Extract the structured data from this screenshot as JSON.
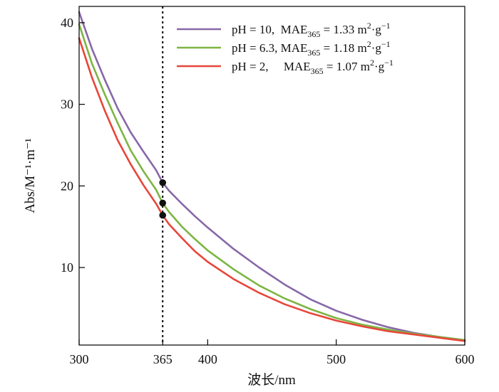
{
  "chart_data": {
    "type": "line",
    "xlabel": "波长/nm",
    "ylabel": "Abs/M⁻¹·m⁻¹",
    "xlim": [
      300,
      600
    ],
    "ylim": [
      0.5,
      42
    ],
    "x_ticks": [
      300,
      365,
      400,
      500,
      600
    ],
    "x_tick_labels": [
      "300",
      "365",
      "400",
      "500",
      "600"
    ],
    "y_ticks": [
      10,
      20,
      30,
      40
    ],
    "y_tick_labels": [
      "10",
      "20",
      "30",
      "40"
    ],
    "grid": false,
    "legend_position": "top-right",
    "reference_line": {
      "x": 365,
      "style": "dotted"
    },
    "x": [
      300,
      310,
      320,
      330,
      340,
      350,
      360,
      365,
      370,
      380,
      390,
      400,
      420,
      440,
      460,
      480,
      500,
      520,
      540,
      560,
      580,
      600
    ],
    "series": [
      {
        "name": "pH = 10",
        "legend_parts": {
          "prefix": "pH = 10,  MAE",
          "sub": "365",
          "mid": " = 1.33 m",
          "sup1": "2",
          "mid2": "·g",
          "sup2": "−1"
        },
        "color": "#8868a8",
        "values": [
          41.3,
          36.8,
          33.0,
          29.5,
          26.6,
          24.2,
          21.9,
          20.4,
          19.4,
          17.8,
          16.3,
          14.9,
          12.3,
          10.0,
          7.9,
          6.1,
          4.7,
          3.6,
          2.7,
          2.0,
          1.5,
          1.1
        ]
      },
      {
        "name": "pH = 6.3",
        "legend_parts": {
          "prefix": "pH = 6.3, MAE",
          "sub": "365",
          "mid": " = 1.18 m",
          "sup1": "2",
          "mid2": "·g",
          "sup2": "−1"
        },
        "color": "#7db543",
        "values": [
          39.8,
          35.0,
          31.2,
          27.7,
          24.4,
          21.8,
          19.5,
          17.9,
          16.8,
          15.0,
          13.5,
          12.1,
          9.8,
          7.8,
          6.2,
          4.9,
          3.8,
          3.0,
          2.4,
          1.9,
          1.5,
          1.1
        ]
      },
      {
        "name": "pH = 2",
        "legend_parts": {
          "prefix": "pH = 2,     MAE",
          "sub": "365",
          "mid": " = 1.07 m",
          "sup1": "2",
          "mid2": "·g",
          "sup2": "−1"
        },
        "color": "#e8463a",
        "values": [
          38.1,
          33.3,
          29.2,
          25.6,
          22.7,
          20.1,
          17.8,
          16.4,
          15.3,
          13.6,
          12.0,
          10.7,
          8.6,
          6.9,
          5.5,
          4.4,
          3.5,
          2.8,
          2.2,
          1.8,
          1.4,
          1.0
        ]
      }
    ],
    "markers": [
      {
        "x": 365,
        "y": 20.4
      },
      {
        "x": 365,
        "y": 17.9
      },
      {
        "x": 365,
        "y": 16.4
      }
    ]
  }
}
